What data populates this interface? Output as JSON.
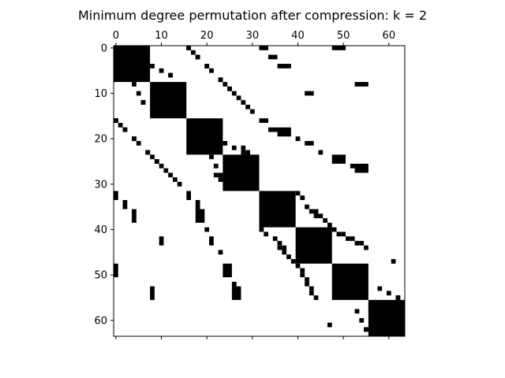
{
  "chart_data": {
    "type": "spy",
    "title": "Minimum degree permutation after compression: k = 2",
    "matrix_size": 64,
    "x_ticks": [
      0,
      10,
      20,
      30,
      40,
      50,
      60
    ],
    "y_ticks": [
      0,
      10,
      20,
      30,
      40,
      50,
      60
    ],
    "xlim": [
      -0.5,
      63.5
    ],
    "ylim": [
      63.5,
      -0.5
    ],
    "x_tick_position": "top",
    "grid": false,
    "marker_color": "#000000",
    "diagonal_blocks": [
      [
        0,
        7
      ],
      [
        8,
        15
      ],
      [
        16,
        23
      ],
      [
        24,
        31
      ],
      [
        32,
        39
      ],
      [
        40,
        47
      ],
      [
        48,
        55
      ],
      [
        56,
        63
      ]
    ],
    "off_diagonal_blocks": [
      [
        0,
        16,
        1,
        1
      ],
      [
        1,
        17,
        1,
        1
      ],
      [
        2,
        18,
        1,
        1
      ],
      [
        4,
        20,
        1,
        1
      ],
      [
        6,
        12,
        1,
        1
      ],
      [
        7,
        23,
        1,
        1
      ],
      [
        8,
        4,
        1,
        1
      ],
      [
        9,
        25,
        1,
        1
      ],
      [
        10,
        5,
        1,
        1
      ],
      [
        12,
        6,
        1,
        1
      ],
      [
        14,
        30,
        1,
        1
      ],
      [
        16,
        0,
        1,
        1
      ],
      [
        18,
        2,
        1,
        1
      ],
      [
        20,
        4,
        1,
        1
      ],
      [
        20,
        40,
        1,
        1
      ],
      [
        21,
        5,
        1,
        1
      ],
      [
        22,
        28,
        1,
        1
      ],
      [
        23,
        7,
        1,
        1
      ],
      [
        23,
        29,
        1,
        1
      ],
      [
        23,
        45,
        1,
        1
      ],
      [
        24,
        8,
        1,
        1
      ],
      [
        24,
        21,
        1,
        1
      ],
      [
        25,
        9,
        1,
        1
      ],
      [
        26,
        10,
        1,
        1
      ],
      [
        26,
        22,
        1,
        1
      ],
      [
        26,
        52,
        1,
        1
      ],
      [
        27,
        11,
        1,
        1
      ],
      [
        28,
        12,
        1,
        1
      ],
      [
        28,
        23,
        1,
        1
      ],
      [
        29,
        13,
        1,
        1
      ],
      [
        29,
        24,
        1,
        1
      ],
      [
        32,
        0,
        2,
        1
      ],
      [
        32,
        16,
        2,
        1
      ],
      [
        33,
        41,
        1,
        1
      ],
      [
        34,
        2,
        2,
        1
      ],
      [
        34,
        18,
        2,
        1
      ],
      [
        35,
        42,
        1,
        1
      ],
      [
        36,
        43,
        1,
        1
      ],
      [
        37,
        44,
        1,
        1
      ],
      [
        36,
        4,
        3,
        1
      ],
      [
        36,
        18,
        3,
        2
      ],
      [
        40,
        32,
        1,
        1
      ],
      [
        40,
        48,
        1,
        1
      ],
      [
        41,
        49,
        1,
        1
      ],
      [
        42,
        10,
        2,
        1
      ],
      [
        42,
        21,
        2,
        1
      ],
      [
        42,
        51,
        1,
        1
      ],
      [
        43,
        53,
        1,
        1
      ],
      [
        44,
        55,
        1,
        1
      ],
      [
        44,
        36,
        1,
        1
      ],
      [
        45,
        37,
        1,
        1
      ],
      [
        46,
        38,
        1,
        1
      ],
      [
        47,
        39,
        1,
        1
      ],
      [
        48,
        0,
        3,
        1
      ],
      [
        48,
        24,
        3,
        2
      ],
      [
        50,
        41,
        1,
        1
      ],
      [
        52,
        42,
        1,
        1
      ],
      [
        53,
        58,
        1,
        1
      ],
      [
        54,
        43,
        1,
        1
      ],
      [
        53,
        8,
        3,
        1
      ],
      [
        53,
        26,
        3,
        2
      ],
      [
        55,
        62,
        1,
        1
      ],
      [
        56,
        57,
        1,
        1
      ],
      [
        58,
        58,
        1,
        1
      ],
      [
        60,
        54,
        1,
        1
      ],
      [
        61,
        47,
        1,
        1
      ],
      [
        62,
        55,
        1,
        1
      ]
    ]
  }
}
